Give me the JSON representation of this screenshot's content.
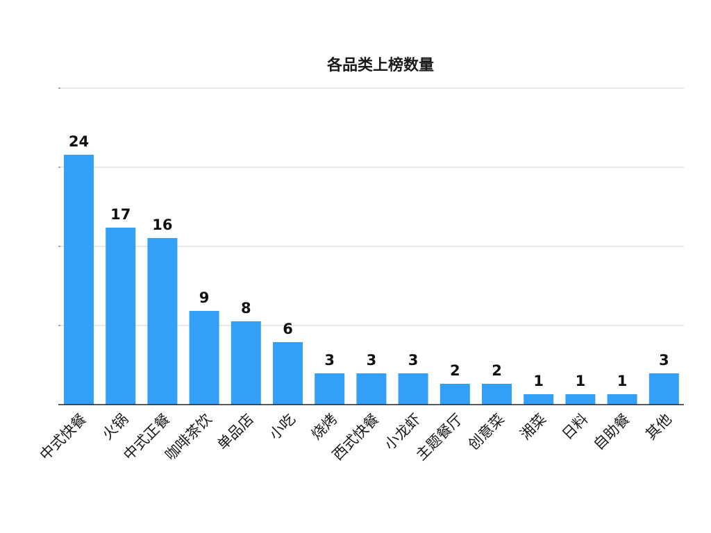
{
  "chart_data": {
    "type": "bar",
    "title": "各品类上榜数量",
    "xlabel": "",
    "ylabel": "",
    "categories": [
      "中式快餐",
      "火锅",
      "中式正餐",
      "咖啡茶饮",
      "单品店",
      "小吃",
      "烧烤",
      "西式快餐",
      "小龙虾",
      "主题餐厅",
      "创意菜",
      "湘菜",
      "日料",
      "自助餐",
      "其他"
    ],
    "values": [
      24,
      17,
      16,
      9,
      8,
      6,
      3,
      3,
      3,
      2,
      2,
      1,
      1,
      1,
      3
    ],
    "ylim": [
      0,
      30
    ],
    "grid": true,
    "legend": "none",
    "bar_color": "#339ff7",
    "gridline_color": "#cfcfcf",
    "axis_color": "#222222"
  }
}
